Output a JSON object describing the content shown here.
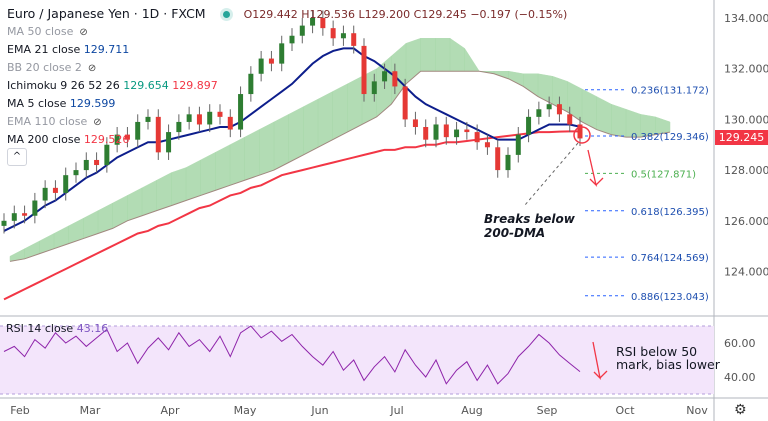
{
  "header": {
    "symbol": "Euro / Japanese Yen · 1D · FXCM",
    "open": "O129.442",
    "high": "H129.536",
    "low": "L129.200",
    "close": "C129.245",
    "change": "−0.197 (−0.15%)",
    "status_color": "#26a69a"
  },
  "legend": [
    {
      "label": "MA 50 close",
      "hidden": true
    },
    {
      "label": "EMA 21 close",
      "value": "129.711",
      "color": "#0d1e8c"
    },
    {
      "label": "BB 20 close 2",
      "hidden": true
    },
    {
      "label": "Ichimoku 9 26 52 26",
      "value": "129.654",
      "value2": "129.897",
      "color": "#089981",
      "color2": "#f23645"
    },
    {
      "label": "MA 5 close",
      "value": "129.599",
      "color": "#2962ff"
    },
    {
      "label": "EMA 110 close",
      "hidden": true
    },
    {
      "label": "MA 200 close",
      "value": "129.526",
      "color": "#f23645"
    }
  ],
  "price_axis": {
    "ticks": [
      "134.000",
      "132.000",
      "130.000",
      "128.000",
      "126.000",
      "124.000"
    ],
    "last_price": "129.245",
    "rsi_ticks": [
      "60.00",
      "40.00"
    ]
  },
  "time_axis": [
    "Feb",
    "Mar",
    "Apr",
    "May",
    "Jun",
    "Jul",
    "Aug",
    "Sep",
    "Oct",
    "Nov"
  ],
  "fib_levels": [
    {
      "label": "0.236(131.172)",
      "price": 131.172,
      "color": "#2962ff"
    },
    {
      "label": "0.382(129.346)",
      "price": 129.346,
      "color": "#2962ff"
    },
    {
      "label": "0.5(127.871)",
      "price": 127.871,
      "color": "#4caf50"
    },
    {
      "label": "0.618(126.395)",
      "price": 126.395,
      "color": "#2962ff"
    },
    {
      "label": "0.764(124.569)",
      "price": 124.569,
      "color": "#2962ff"
    },
    {
      "label": "0.886(123.043)",
      "price": 123.043,
      "color": "#2962ff"
    }
  ],
  "annotations": {
    "breaks": "Breaks below\n200-DMA",
    "rsi_title": "RSI 14 close",
    "rsi_value": "43.16",
    "rsi_note": "RSI below 50\nmark, bias lower"
  },
  "chart_data": {
    "type": "candlestick",
    "ylim": [
      122.5,
      134.7
    ],
    "close": [
      126.0,
      126.3,
      126.2,
      126.8,
      127.3,
      127.1,
      127.8,
      128.0,
      128.4,
      128.2,
      129.0,
      129.4,
      129.2,
      129.9,
      130.1,
      128.7,
      129.5,
      129.9,
      130.2,
      129.8,
      130.3,
      130.1,
      129.6,
      131.0,
      131.8,
      132.4,
      132.2,
      133.0,
      133.3,
      133.7,
      134.0,
      133.6,
      133.2,
      133.4,
      132.9,
      131.0,
      131.5,
      131.9,
      131.3,
      130.0,
      129.7,
      129.2,
      129.8,
      129.3,
      129.6,
      129.5,
      129.1,
      128.9,
      128.0,
      128.6,
      129.4,
      130.1,
      130.4,
      130.6,
      130.2,
      129.8,
      129.25
    ],
    "ema21": [
      125.6,
      125.8,
      126.0,
      126.3,
      126.6,
      126.8,
      127.1,
      127.4,
      127.7,
      127.9,
      128.2,
      128.5,
      128.7,
      128.9,
      129.1,
      129.1,
      129.2,
      129.3,
      129.4,
      129.5,
      129.6,
      129.7,
      129.7,
      129.9,
      130.2,
      130.5,
      130.8,
      131.1,
      131.4,
      131.8,
      132.2,
      132.5,
      132.7,
      132.8,
      132.8,
      132.5,
      132.3,
      132.0,
      131.7,
      131.3,
      130.9,
      130.6,
      130.4,
      130.2,
      130.0,
      129.8,
      129.6,
      129.4,
      129.2,
      129.2,
      129.2,
      129.4,
      129.6,
      129.8,
      129.8,
      129.8,
      129.71
    ],
    "ma200": [
      122.9,
      123.1,
      123.3,
      123.5,
      123.7,
      123.9,
      124.1,
      124.3,
      124.5,
      124.7,
      124.9,
      125.1,
      125.3,
      125.5,
      125.6,
      125.8,
      125.9,
      126.1,
      126.3,
      126.5,
      126.6,
      126.8,
      127.0,
      127.1,
      127.3,
      127.4,
      127.6,
      127.8,
      127.9,
      128.0,
      128.1,
      128.2,
      128.3,
      128.4,
      128.5,
      128.6,
      128.7,
      128.8,
      128.8,
      128.9,
      128.9,
      129.0,
      129.0,
      129.1,
      129.1,
      129.15,
      129.2,
      129.25,
      129.3,
      129.35,
      129.4,
      129.45,
      129.5,
      129.5,
      129.52,
      129.53,
      129.526
    ],
    "cloud_top": [
      124.6,
      124.9,
      125.2,
      125.5,
      125.8,
      126.1,
      126.4,
      126.7,
      127.0,
      127.3,
      127.6,
      127.9,
      128.1,
      128.4,
      128.7,
      129.0,
      129.3,
      129.6,
      129.9,
      130.2,
      130.5,
      130.8,
      131.1,
      131.4,
      131.7,
      132.0,
      132.5,
      133.0,
      133.2,
      133.2,
      133.2,
      132.8,
      131.9,
      131.9,
      131.9,
      131.8,
      131.8,
      131.7,
      131.5,
      131.2,
      130.9,
      130.6,
      130.4,
      130.2,
      130.1,
      129.9
    ],
    "cloud_bottom": [
      124.4,
      124.5,
      124.7,
      124.9,
      125.1,
      125.3,
      125.5,
      125.7,
      126.0,
      126.2,
      126.4,
      126.6,
      126.8,
      127.0,
      127.2,
      127.4,
      127.6,
      127.8,
      128.0,
      128.3,
      128.6,
      128.9,
      129.2,
      129.5,
      129.8,
      130.1,
      130.6,
      131.4,
      131.9,
      131.9,
      131.9,
      131.9,
      131.9,
      131.8,
      131.6,
      131.3,
      130.9,
      130.6,
      130.3,
      129.9,
      129.6,
      129.4,
      129.3,
      129.3,
      129.4,
      129.5
    ],
    "rsi": [
      55,
      58,
      52,
      62,
      57,
      66,
      60,
      64,
      58,
      63,
      68,
      55,
      60,
      48,
      57,
      63,
      56,
      66,
      58,
      62,
      55,
      64,
      52,
      66,
      70,
      63,
      67,
      61,
      65,
      58,
      52,
      47,
      55,
      44,
      50,
      38,
      46,
      52,
      43,
      56,
      47,
      40,
      50,
      36,
      44,
      49,
      38,
      47,
      36,
      42,
      52,
      58,
      65,
      60,
      53,
      48,
      43.16
    ]
  }
}
